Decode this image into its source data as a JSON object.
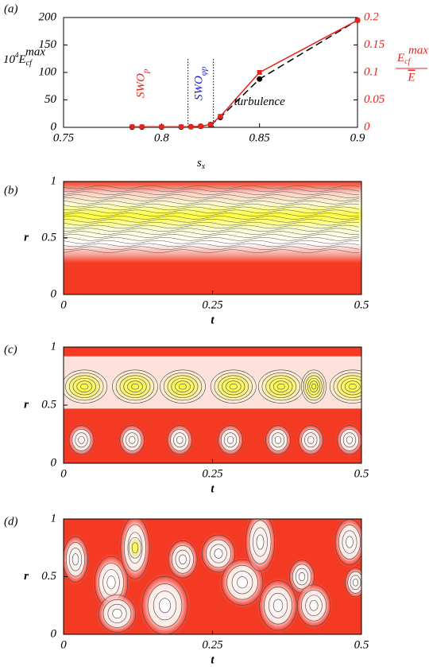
{
  "chart_data": [
    {
      "type": "line",
      "panel_label": "(a)",
      "xlabel": {
        "symbol": "s",
        "sub": "x"
      },
      "ylabel": {
        "base": "10",
        "exp": "4",
        "symbol": "E",
        "sub": "cf",
        "sup": "max"
      },
      "y2label": {
        "symbol": "E",
        "sub": "cf",
        "sup": "max",
        "denominator": "E"
      },
      "x": [
        0.785,
        0.79,
        0.8,
        0.81,
        0.815,
        0.82,
        0.825,
        0.83,
        0.85,
        0.9
      ],
      "series": [
        {
          "name": "10^4 E_cf^max",
          "color": "#000000",
          "dash": true,
          "marker": "circle",
          "values": [
            0.5,
            0.5,
            0.5,
            0.5,
            1,
            2,
            5,
            18,
            88,
            195
          ]
        },
        {
          "name": "E_cf^max / E",
          "color": "#e8231c",
          "axis": "y2",
          "marker": "square",
          "values": [
            0.001,
            0.001,
            0.001,
            0.001,
            0.001,
            0.002,
            0.005,
            0.02,
            0.1,
            0.195
          ]
        }
      ],
      "xlim": [
        0.75,
        0.9
      ],
      "xticks": [
        0.75,
        0.8,
        0.85,
        0.9
      ],
      "ylim": [
        0,
        200
      ],
      "yticks": [
        0,
        50,
        100,
        150,
        200
      ],
      "y2lim": [
        0,
        0.2
      ],
      "y2ticks": [
        0,
        0.05,
        0.1,
        0.15,
        0.2
      ],
      "vlines": [
        0.8135,
        0.8265
      ],
      "annotations": [
        {
          "text": "SWO",
          "sub": "p",
          "color": "#e8231c",
          "x": 0.79,
          "y": 80,
          "rotate": true
        },
        {
          "text": "SWO",
          "sub": "φp",
          "color": "#2222cc",
          "x": 0.8195,
          "y": 80,
          "rotate": true
        },
        {
          "text": "turbulence",
          "color": "#000000",
          "x": 0.85,
          "y": 45,
          "rotate": false
        }
      ]
    },
    {
      "type": "contour",
      "panel_label": "(b)",
      "xlabel": "t",
      "ylabel": "r",
      "xlim": [
        0,
        0.5
      ],
      "xticks": [
        0,
        0.25,
        0.5
      ],
      "ylim": [
        0,
        1
      ],
      "yticks": [
        0,
        0.5,
        1
      ]
    },
    {
      "type": "contour",
      "panel_label": "(c)",
      "xlabel": "t",
      "ylabel": "r",
      "xlim": [
        0,
        0.5
      ],
      "xticks": [
        0,
        0.25,
        0.5
      ],
      "ylim": [
        0,
        1
      ],
      "yticks": [
        0,
        0.5,
        1
      ]
    },
    {
      "type": "contour",
      "panel_label": "(d)",
      "xlabel": "t",
      "ylabel": "r",
      "xlim": [
        0,
        0.5
      ],
      "xticks": [
        0,
        0.25,
        0.5
      ],
      "ylim": [
        0,
        1
      ],
      "yticks": [
        0,
        0.5,
        1
      ]
    }
  ]
}
